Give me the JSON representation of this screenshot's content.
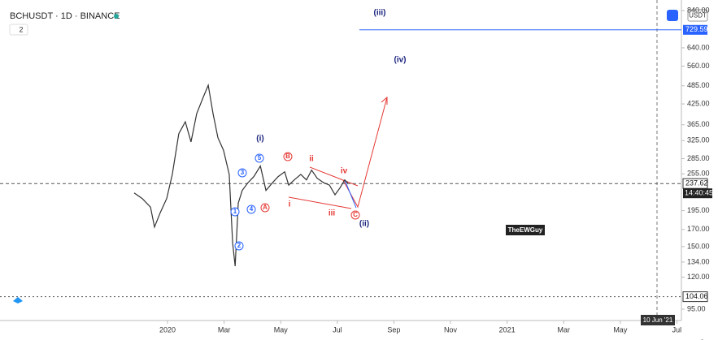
{
  "chart_data": {
    "type": "line",
    "title": "BCHUSDT · 1D · BINANCE",
    "interval_badge": "2",
    "currency_button": "USDT",
    "log_scale": true,
    "grid": false,
    "series": [
      {
        "name": "BCHUSDT",
        "color": "#333333",
        "x": [
          -1.18,
          -0.89,
          -0.6,
          -0.46,
          -0.26,
          -0.03,
          0.17,
          0.4,
          0.63,
          0.83,
          1.03,
          1.26,
          1.44,
          1.61,
          1.78,
          1.98,
          2.18,
          2.3,
          2.39,
          2.5,
          2.64,
          2.84,
          3.05,
          3.28,
          3.48,
          3.71,
          3.91,
          4.14,
          4.28,
          4.48,
          4.71,
          4.91,
          5.09,
          5.29,
          5.52,
          5.72,
          5.92,
          6.09,
          6.26,
          6.38
        ],
        "values": [
          222,
          213,
          200,
          173,
          192,
          213,
          254,
          342,
          373,
          322,
          396,
          446,
          487,
          396,
          332,
          303,
          254,
          154,
          130,
          206,
          226,
          239,
          250,
          270,
          226,
          239,
          250,
          259,
          235,
          244,
          254,
          244,
          262,
          247,
          239,
          235,
          219,
          230,
          244,
          238
        ]
      }
    ],
    "xlim": [
      -5.92,
      18.16
    ],
    "xticks": [
      {
        "value": 0,
        "label": "2020"
      },
      {
        "value": 2,
        "label": "Mar"
      },
      {
        "value": 4,
        "label": "May"
      },
      {
        "value": 6,
        "label": "Jul"
      },
      {
        "value": 8,
        "label": "Sep"
      },
      {
        "value": 10,
        "label": "Nov"
      },
      {
        "value": 12,
        "label": "2021"
      },
      {
        "value": 14,
        "label": "Mar"
      },
      {
        "value": 16,
        "label": "May"
      },
      {
        "value": 18,
        "label": "Jul"
      }
    ],
    "ylim": [
      95,
      840
    ],
    "yticks": [
      {
        "value": 840,
        "label": "840.00"
      },
      {
        "value": 640,
        "label": "640.00"
      },
      {
        "value": 560,
        "label": "560.00"
      },
      {
        "value": 485,
        "label": "485.00"
      },
      {
        "value": 425,
        "label": "425.00"
      },
      {
        "value": 365,
        "label": "365.00"
      },
      {
        "value": 325,
        "label": "325.00"
      },
      {
        "value": 285,
        "label": "285.00"
      },
      {
        "value": 255,
        "label": "255.00"
      },
      {
        "value": 195,
        "label": "195.00"
      },
      {
        "value": 170,
        "label": "170.00"
      },
      {
        "value": 150,
        "label": "150.00"
      },
      {
        "value": 134,
        "label": "134.00"
      },
      {
        "value": 120,
        "label": "120.00"
      },
      {
        "value": 95,
        "label": "95.00"
      }
    ],
    "horizontal_lines": [
      {
        "value": 729.59,
        "color": "#2962ff"
      },
      {
        "value": 237.62,
        "color": "#555555"
      },
      {
        "value": 104.06,
        "color": "#555555"
      }
    ],
    "countdown": "14:40:45",
    "crosshair_label": "10 Jun '21",
    "author_label": "TheEWGuy",
    "annotations": [
      "(iii)",
      "(iv)",
      "(i)",
      "5",
      "3",
      "4",
      "1",
      "2",
      "A",
      "B",
      "ii",
      "iv",
      "i",
      "iii",
      "C",
      "(ii)"
    ]
  }
}
